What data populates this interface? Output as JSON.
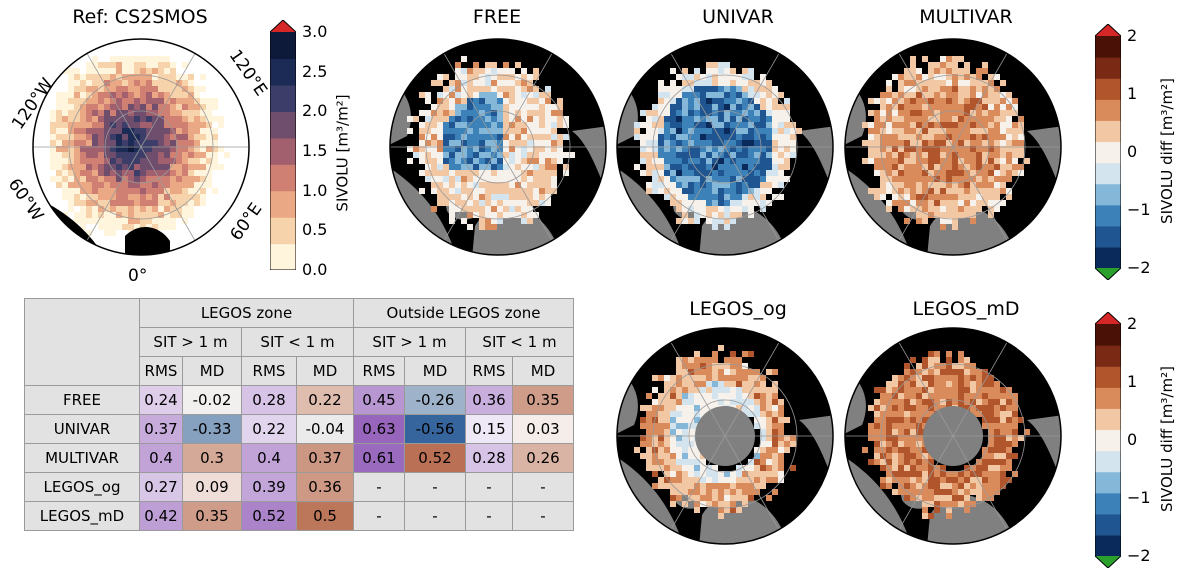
{
  "chart_data": [
    {
      "type": "heatmap",
      "title": "Ref: CS2SMOS",
      "projection": "north-polar-stereographic",
      "longitude_labels": [
        "120°W",
        "120°E",
        "60°W",
        "60°E",
        "0°"
      ],
      "colorbar": {
        "label": "SIVOLU [m³/m²]",
        "range": [
          0.0,
          3.0
        ],
        "ticks": [
          "0.0",
          "0.5",
          "1.0",
          "1.5",
          "2.0",
          "2.5",
          "3.0"
        ],
        "extend": "max",
        "extend_color": "#d62728",
        "colormap": [
          "#fff4dc",
          "#f7d3ac",
          "#eaa884",
          "#cf8072",
          "#a25f6d",
          "#6e4d6d",
          "#3c3d68",
          "#1b2b55",
          "#0e1a3a"
        ]
      }
    },
    {
      "type": "heatmap",
      "title": "FREE",
      "projection": "north-polar-stereographic"
    },
    {
      "type": "heatmap",
      "title": "UNIVAR",
      "projection": "north-polar-stereographic"
    },
    {
      "type": "heatmap",
      "title": "MULTIVAR",
      "projection": "north-polar-stereographic"
    },
    {
      "type": "heatmap",
      "title": "LEGOS_og",
      "projection": "north-polar-stereographic"
    },
    {
      "type": "heatmap",
      "title": "LEGOS_mD",
      "projection": "north-polar-stereographic"
    },
    {
      "type": "table",
      "column_groups": [
        "LEGOS zone",
        "Outside LEGOS zone"
      ],
      "column_subgroups": [
        "SIT > 1 m",
        "SIT < 1 m",
        "SIT > 1 m",
        "SIT < 1 m"
      ],
      "columns": [
        "RMS",
        "MD",
        "RMS",
        "MD",
        "RMS",
        "MD",
        "RMS",
        "MD"
      ],
      "rows": [
        {
          "name": "FREE",
          "values": [
            "0.24",
            "-0.02",
            "0.28",
            "0.22",
            "0.45",
            "-0.26",
            "0.36",
            "0.35"
          ]
        },
        {
          "name": "UNIVAR",
          "values": [
            "0.37",
            "-0.33",
            "0.22",
            "-0.04",
            "0.63",
            "-0.56",
            "0.15",
            "0.03"
          ]
        },
        {
          "name": "MULTIVAR",
          "values": [
            "0.4",
            "0.3",
            "0.4",
            "0.37",
            "0.61",
            "0.52",
            "0.28",
            "0.26"
          ]
        },
        {
          "name": "LEGOS_og",
          "values": [
            "0.27",
            "0.09",
            "0.39",
            "0.36",
            "-",
            "-",
            "-",
            "-"
          ]
        },
        {
          "name": "LEGOS_mD",
          "values": [
            "0.42",
            "0.35",
            "0.52",
            "0.5",
            "-",
            "-",
            "-",
            "-"
          ]
        }
      ]
    }
  ],
  "diff_colorbar": {
    "label": "SIVOLU diff [m³/m²]",
    "range": [
      -2,
      2
    ],
    "ticks": [
      "2",
      "1",
      "0",
      "−1",
      "−2"
    ],
    "extend": "both",
    "extend_max_color": "#d62728",
    "extend_min_color": "#2ca02c",
    "colormap": [
      "#0b2a5c",
      "#1f5590",
      "#3c82b8",
      "#84b7d8",
      "#d3e4ef",
      "#f7f1ec",
      "#f2c7a4",
      "#d98b5b",
      "#b0552c",
      "#7a2a14",
      "#4a1206"
    ]
  },
  "colors": {
    "ocean": "#000000",
    "land": "#808080",
    "table_header": "#e2e2e2",
    "table_border": "#9a9a9a"
  }
}
